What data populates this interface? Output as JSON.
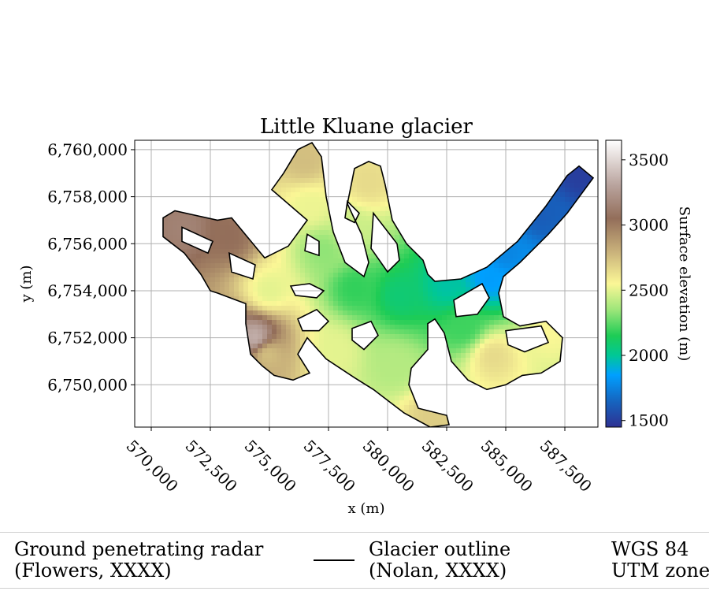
{
  "chart_data": {
    "type": "heatmap",
    "title": "Little Kluane glacier",
    "xlabel": "x (m)",
    "ylabel": "y (m)",
    "xlim": [
      569300,
      588900
    ],
    "ylim": [
      6748200,
      6760400
    ],
    "x_ticks": [
      {
        "value": 570000,
        "label": "570,000"
      },
      {
        "value": 572500,
        "label": "572,500"
      },
      {
        "value": 575000,
        "label": "575,000"
      },
      {
        "value": 577500,
        "label": "577,500"
      },
      {
        "value": 580000,
        "label": "580,000"
      },
      {
        "value": 582500,
        "label": "582,500"
      },
      {
        "value": 585000,
        "label": "585,000"
      },
      {
        "value": 587500,
        "label": "587,500"
      }
    ],
    "y_ticks": [
      {
        "value": 6750000,
        "label": "6,750,000"
      },
      {
        "value": 6752000,
        "label": "6,752,000"
      },
      {
        "value": 6754000,
        "label": "6,754,000"
      },
      {
        "value": 6756000,
        "label": "6,756,000"
      },
      {
        "value": 6758000,
        "label": "6,758,000"
      },
      {
        "value": 6760000,
        "label": "6,760,000"
      }
    ],
    "grid": true,
    "colorbar": {
      "label": "Surface elevation (m)",
      "range": [
        1450,
        3650
      ],
      "ticks": [
        {
          "value": 1500,
          "label": "1500"
        },
        {
          "value": 2000,
          "label": "2000"
        },
        {
          "value": 2500,
          "label": "2500"
        },
        {
          "value": 3000,
          "label": "3000"
        },
        {
          "value": 3500,
          "label": "3500"
        }
      ],
      "stops": [
        {
          "value": 1450,
          "color": "#2e3192"
        },
        {
          "value": 1650,
          "color": "#1565c0"
        },
        {
          "value": 1850,
          "color": "#00a0ff"
        },
        {
          "value": 2000,
          "color": "#00c896"
        },
        {
          "value": 2150,
          "color": "#1ecc55"
        },
        {
          "value": 2350,
          "color": "#9de67a"
        },
        {
          "value": 2550,
          "color": "#fbf796"
        },
        {
          "value": 2800,
          "color": "#c8b07a"
        },
        {
          "value": 3050,
          "color": "#936e5a"
        },
        {
          "value": 3300,
          "color": "#b8a29c"
        },
        {
          "value": 3650,
          "color": "#ffffff"
        }
      ]
    },
    "outline": [
      [
        574000,
        6753450
      ],
      [
        572800,
        6753900
      ],
      [
        572500,
        6754000
      ],
      [
        572100,
        6754700
      ],
      [
        571400,
        6755600
      ],
      [
        570500,
        6756300
      ],
      [
        570500,
        6757100
      ],
      [
        571000,
        6757400
      ],
      [
        572800,
        6757000
      ],
      [
        573400,
        6757100
      ],
      [
        574800,
        6755400
      ],
      [
        575800,
        6755900
      ],
      [
        576600,
        6757000
      ],
      [
        575100,
        6758300
      ],
      [
        575600,
        6759000
      ],
      [
        576200,
        6760000
      ],
      [
        576800,
        6760300
      ],
      [
        577200,
        6759700
      ],
      [
        577400,
        6758000
      ],
      [
        577700,
        6756500
      ],
      [
        578200,
        6755200
      ],
      [
        579000,
        6754600
      ],
      [
        579200,
        6755200
      ],
      [
        578900,
        6756400
      ],
      [
        578300,
        6757700
      ],
      [
        578600,
        6759200
      ],
      [
        579200,
        6759500
      ],
      [
        579700,
        6759300
      ],
      [
        579900,
        6758500
      ],
      [
        580200,
        6757000
      ],
      [
        580800,
        6756000
      ],
      [
        581500,
        6755300
      ],
      [
        581700,
        6754700
      ],
      [
        582000,
        6754400
      ],
      [
        583100,
        6754500
      ],
      [
        584200,
        6755000
      ],
      [
        585500,
        6756100
      ],
      [
        586700,
        6757600
      ],
      [
        587600,
        6758900
      ],
      [
        588100,
        6759300
      ],
      [
        588700,
        6758800
      ],
      [
        587600,
        6757300
      ],
      [
        586800,
        6756400
      ],
      [
        585600,
        6755200
      ],
      [
        584900,
        6754600
      ],
      [
        584700,
        6753900
      ],
      [
        584900,
        6752900
      ],
      [
        585600,
        6752500
      ],
      [
        586700,
        6752700
      ],
      [
        587400,
        6752000
      ],
      [
        587300,
        6751000
      ],
      [
        586500,
        6750500
      ],
      [
        585700,
        6750400
      ],
      [
        585000,
        6750000
      ],
      [
        584200,
        6749800
      ],
      [
        583400,
        6750200
      ],
      [
        582700,
        6751000
      ],
      [
        582400,
        6752200
      ],
      [
        582000,
        6752800
      ],
      [
        581700,
        6752600
      ],
      [
        581700,
        6751500
      ],
      [
        581000,
        6750700
      ],
      [
        580900,
        6750000
      ],
      [
        581300,
        6749000
      ],
      [
        582500,
        6748700
      ],
      [
        582600,
        6748300
      ],
      [
        581800,
        6748200
      ],
      [
        580700,
        6748800
      ],
      [
        579400,
        6749800
      ],
      [
        578600,
        6750300
      ],
      [
        577400,
        6751100
      ],
      [
        576600,
        6752000
      ],
      [
        576200,
        6751300
      ],
      [
        576700,
        6750500
      ],
      [
        576000,
        6750200
      ],
      [
        575200,
        6750400
      ],
      [
        574700,
        6750800
      ],
      [
        574200,
        6751300
      ],
      [
        574000,
        6752600
      ]
    ],
    "holes": [
      [
        [
          573300,
          6755600
        ],
        [
          574400,
          6755100
        ],
        [
          574300,
          6754500
        ],
        [
          573400,
          6754800
        ]
      ],
      [
        [
          576600,
          6756400
        ],
        [
          577100,
          6756100
        ],
        [
          577100,
          6755500
        ],
        [
          576500,
          6755700
        ]
      ],
      [
        [
          578300,
          6757800
        ],
        [
          578800,
          6757300
        ],
        [
          578600,
          6756900
        ],
        [
          578200,
          6757100
        ]
      ],
      [
        [
          579400,
          6757300
        ],
        [
          580400,
          6756000
        ],
        [
          580500,
          6755300
        ],
        [
          580000,
          6754800
        ],
        [
          579300,
          6755800
        ]
      ],
      [
        [
          575900,
          6754200
        ],
        [
          576700,
          6754300
        ],
        [
          577300,
          6754000
        ],
        [
          577000,
          6753700
        ],
        [
          576100,
          6753800
        ]
      ],
      [
        [
          582800,
          6753600
        ],
        [
          584000,
          6754300
        ],
        [
          584300,
          6753700
        ],
        [
          583800,
          6753000
        ],
        [
          582900,
          6752900
        ]
      ],
      [
        [
          585000,
          6752300
        ],
        [
          586500,
          6752500
        ],
        [
          586800,
          6751800
        ],
        [
          585800,
          6751400
        ],
        [
          585100,
          6751700
        ]
      ],
      [
        [
          576200,
          6752800
        ],
        [
          577000,
          6753200
        ],
        [
          577500,
          6752700
        ],
        [
          577100,
          6752300
        ],
        [
          576400,
          6752300
        ]
      ],
      [
        [
          578500,
          6752400
        ],
        [
          579300,
          6752700
        ],
        [
          579600,
          6752100
        ],
        [
          579000,
          6751500
        ],
        [
          578500,
          6751900
        ]
      ],
      [
        [
          571300,
          6756700
        ],
        [
          572600,
          6756100
        ],
        [
          572400,
          6755600
        ],
        [
          571300,
          6756100
        ]
      ]
    ],
    "elevation_field": {
      "control_points": [
        {
          "x": 588200,
          "y": 6759000,
          "z": 1500
        },
        {
          "x": 586500,
          "y": 6757200,
          "z": 1620
        },
        {
          "x": 585000,
          "y": 6755600,
          "z": 1760
        },
        {
          "x": 584300,
          "y": 6754500,
          "z": 1840
        },
        {
          "x": 582500,
          "y": 6754200,
          "z": 1980
        },
        {
          "x": 580500,
          "y": 6753800,
          "z": 2080
        },
        {
          "x": 578600,
          "y": 6754100,
          "z": 2180
        },
        {
          "x": 577300,
          "y": 6755700,
          "z": 2330
        },
        {
          "x": 576700,
          "y": 6757600,
          "z": 2520
        },
        {
          "x": 576500,
          "y": 6759500,
          "z": 2750
        },
        {
          "x": 579200,
          "y": 6758600,
          "z": 2650
        },
        {
          "x": 575000,
          "y": 6754000,
          "z": 2500
        },
        {
          "x": 573300,
          "y": 6756300,
          "z": 3050
        },
        {
          "x": 571400,
          "y": 6756700,
          "z": 3150
        },
        {
          "x": 574900,
          "y": 6751300,
          "z": 2750
        },
        {
          "x": 574400,
          "y": 6752000,
          "z": 3350
        },
        {
          "x": 577800,
          "y": 6751500,
          "z": 2500
        },
        {
          "x": 580300,
          "y": 6750800,
          "z": 2400
        },
        {
          "x": 581900,
          "y": 6748600,
          "z": 2700
        },
        {
          "x": 583200,
          "y": 6752500,
          "z": 2200
        },
        {
          "x": 584500,
          "y": 6751200,
          "z": 2650
        },
        {
          "x": 586800,
          "y": 6752300,
          "z": 2550
        },
        {
          "x": 578500,
          "y": 6756600,
          "z": 2450
        }
      ]
    }
  },
  "legend": {
    "gpr_label_line1": "Ground penetrating radar",
    "gpr_label_line2": "(Flowers, XXXX)",
    "outline_label_line1": "Glacier outline",
    "outline_label_line2": "(Nolan, XXXX)",
    "crs_line1": "WGS 84",
    "crs_line2": "UTM zone"
  }
}
